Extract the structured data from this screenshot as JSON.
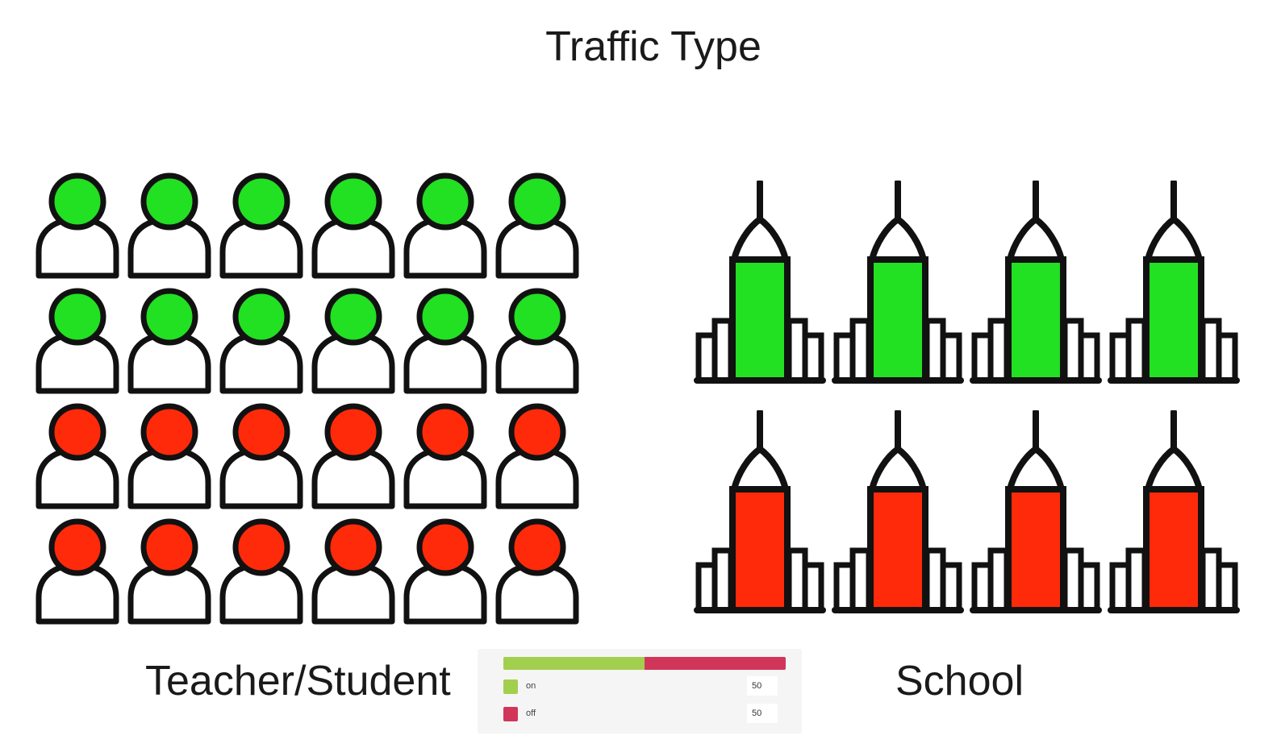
{
  "title": "Traffic Type",
  "left_label": "Teacher/Student",
  "right_label": "School",
  "colors": {
    "on": "#22e022",
    "off": "#ff2a0a",
    "outline": "#111111",
    "legend_on": "#a3cf4f",
    "legend_off": "#d1365a"
  },
  "people": {
    "icon": "person-icon",
    "columns": 6,
    "rows": [
      "on",
      "on",
      "off",
      "off"
    ]
  },
  "schools": {
    "icon": "building-icon",
    "columns": 4,
    "rows": [
      "on",
      "off"
    ]
  },
  "legend": {
    "items": [
      {
        "key": "on",
        "label": "on",
        "value": "50"
      },
      {
        "key": "off",
        "label": "off",
        "value": "50"
      }
    ]
  }
}
